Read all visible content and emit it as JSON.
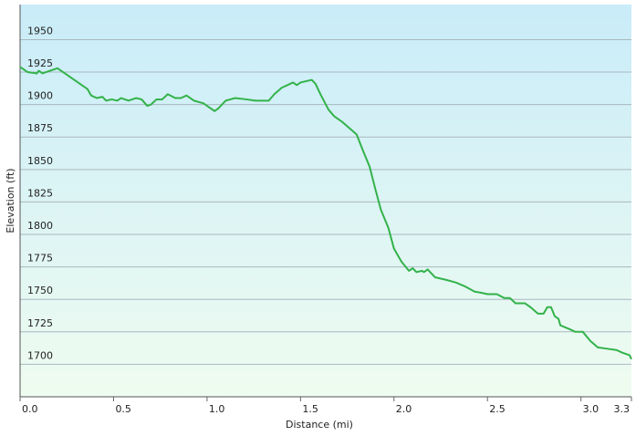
{
  "chart_data": {
    "type": "line",
    "x_label": "Distance  (mi)",
    "y_label": "Elevation (ft)",
    "xlim": [
      0,
      3.27
    ],
    "ylim": [
      1675,
      1977
    ],
    "xticks": [
      {
        "value": 0,
        "label": "0.0"
      },
      {
        "value": 0.5,
        "label": "0.5"
      },
      {
        "value": 1,
        "label": "1.0"
      },
      {
        "value": 1.5,
        "label": "1.5"
      },
      {
        "value": 2,
        "label": "2.0"
      },
      {
        "value": 2.5,
        "label": "2.5"
      },
      {
        "value": 3,
        "label": "3.0"
      },
      {
        "value": 3.27,
        "label": "3.3"
      }
    ],
    "yticks": [
      1700,
      1725,
      1750,
      1775,
      1800,
      1825,
      1850,
      1875,
      1900,
      1925,
      1950
    ],
    "grid": true,
    "series": [
      {
        "color": "#33b24a",
        "x": [
          0,
          0.04,
          0.09,
          0.1,
          0.12,
          0.16,
          0.2,
          0.26,
          0.36,
          0.38,
          0.41,
          0.44,
          0.46,
          0.49,
          0.52,
          0.54,
          0.58,
          0.62,
          0.65,
          0.68,
          0.7,
          0.73,
          0.76,
          0.79,
          0.83,
          0.86,
          0.89,
          0.93,
          0.98,
          1.0,
          1.04,
          1.06,
          1.1,
          1.15,
          1.21,
          1.26,
          1.29,
          1.33,
          1.36,
          1.4,
          1.46,
          1.48,
          1.5,
          1.56,
          1.58,
          1.61,
          1.65,
          1.68,
          1.72,
          1.76,
          1.8,
          1.83,
          1.87,
          1.9,
          1.93,
          1.97,
          2.0,
          2.04,
          2.08,
          2.1,
          2.12,
          2.15,
          2.16,
          2.18,
          2.22,
          2.28,
          2.33,
          2.38,
          2.43,
          2.47,
          2.5,
          2.55,
          2.59,
          2.62,
          2.65,
          2.7,
          2.73,
          2.77,
          2.8,
          2.82,
          2.84,
          2.86,
          2.88,
          2.89,
          2.94,
          2.97,
          3.01,
          3.05,
          3.09,
          3.14,
          3.19,
          3.22,
          3.26,
          3.27
        ],
        "values": [
          1929,
          1925,
          1924,
          1926,
          1924,
          1926,
          1928,
          1922,
          1912,
          1907,
          1905,
          1906,
          1903,
          1904,
          1903,
          1905,
          1903,
          1905,
          1904,
          1899,
          1900,
          1904,
          1904,
          1908,
          1905,
          1905,
          1907,
          1903,
          1901,
          1899,
          1895,
          1897,
          1903,
          1905,
          1904,
          1903,
          1903,
          1903,
          1908,
          1913,
          1917,
          1915,
          1917,
          1919,
          1916,
          1907,
          1896,
          1891,
          1887,
          1882,
          1877,
          1866,
          1852,
          1835,
          1819,
          1805,
          1789,
          1779,
          1772,
          1774,
          1771,
          1772,
          1771,
          1773,
          1767,
          1765,
          1763,
          1760,
          1756,
          1755,
          1754,
          1754,
          1751,
          1751,
          1747,
          1747,
          1744,
          1739,
          1739,
          1744,
          1744,
          1737,
          1735,
          1730,
          1727,
          1725,
          1725,
          1718,
          1713,
          1712,
          1711,
          1709,
          1707,
          1704
        ]
      }
    ]
  }
}
